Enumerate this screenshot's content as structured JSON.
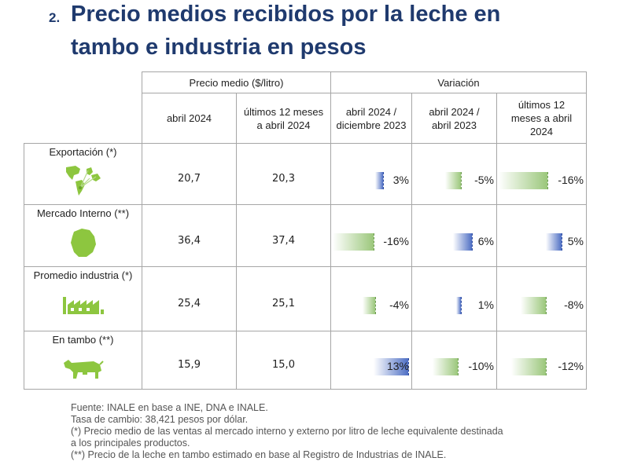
{
  "title": {
    "number": "2.",
    "line1": "Precio medios recibidos por la leche en",
    "line2": "tambo e industria en pesos"
  },
  "header": {
    "group_precio": "Precio medio ($/litro)",
    "group_variacion": "Variación",
    "columns": [
      "abril 2024",
      "últimos 12 meses a abril 2024",
      "abril 2024 / diciembre 2023",
      "abril 2024 / abril 2023",
      "últimos 12 meses a abril 2024"
    ]
  },
  "rows": [
    {
      "label": "Exportación (*)",
      "icon": "world-map-icon",
      "abril": "20,7",
      "ultimos12": "20,3",
      "variations": [
        {
          "text": "3%",
          "value": 3
        },
        {
          "text": "-5%",
          "value": -5
        },
        {
          "text": "-16%",
          "value": -16
        }
      ]
    },
    {
      "label": "Mercado Interno (**)",
      "icon": "uruguay-map-icon",
      "abril": "36,4",
      "ultimos12": "37,4",
      "variations": [
        {
          "text": "-16%",
          "value": -16
        },
        {
          "text": "6%",
          "value": 6
        },
        {
          "text": "5%",
          "value": 5
        }
      ]
    },
    {
      "label": "Promedio industria (*)",
      "icon": "factory-icon",
      "abril": "25,4",
      "ultimos12": "25,1",
      "variations": [
        {
          "text": "-4%",
          "value": -4
        },
        {
          "text": "1%",
          "value": 1
        },
        {
          "text": "-8%",
          "value": -8
        }
      ]
    },
    {
      "label": "En tambo (**)",
      "icon": "cow-icon",
      "abril": "15,9",
      "ultimos12": "15,0",
      "variations": [
        {
          "text": "13%",
          "value": 13
        },
        {
          "text": "-10%",
          "value": -10
        },
        {
          "text": "-12%",
          "value": -12
        }
      ]
    }
  ],
  "footer": [
    "Fuente: INALE en base a INE, DNA e INALE.",
    "Tasa de cambio: 38,421 pesos por dólar.",
    "(*) Precio medio de las ventas al mercado interno y externo por litro de leche equivalente destinada",
    "a los principales productos.",
    "(**) Precio de la leche en tambo estimado en base al Registro de Industrias de INALE."
  ],
  "colors": {
    "title": "#1f3a6e",
    "value_text": "#2d6aa8",
    "positive_bar": "#4e6fc4",
    "negative_bar": "#9bc77b",
    "icon_green": "#8dc63f"
  }
}
